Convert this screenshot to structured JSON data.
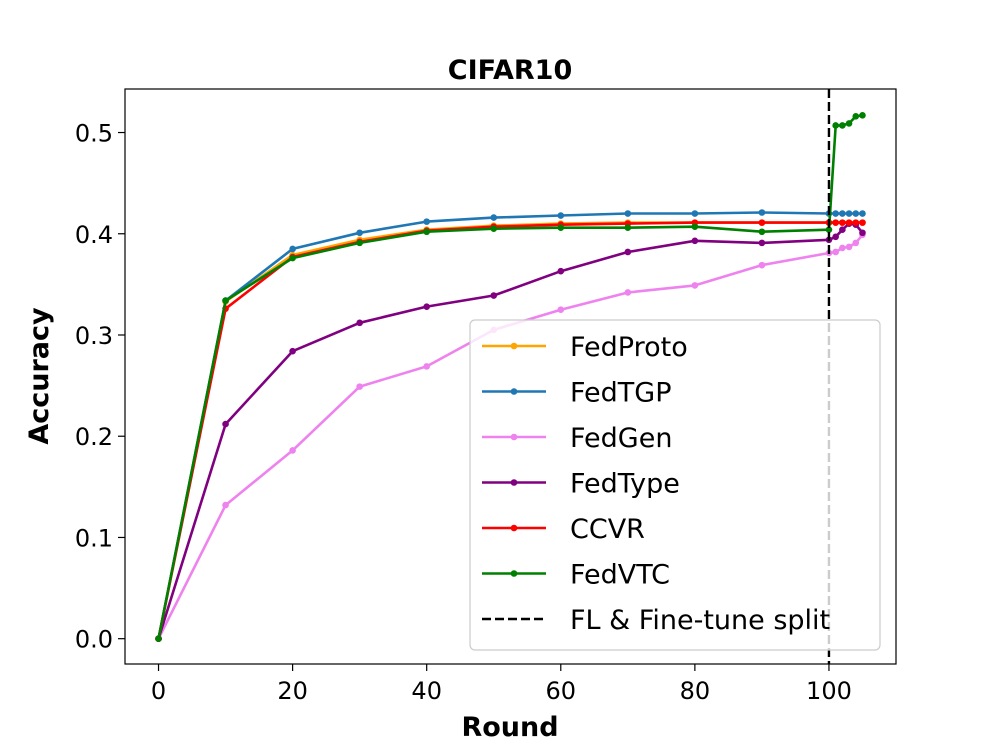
{
  "chart_data": {
    "type": "line",
    "title": "CIFAR10",
    "xlabel": "Round",
    "ylabel": "Accuracy",
    "xlim": [
      -5,
      110
    ],
    "ylim": [
      -0.025,
      0.543
    ],
    "xticks": [
      0,
      20,
      40,
      60,
      80,
      100
    ],
    "yticks": [
      0.0,
      0.1,
      0.2,
      0.3,
      0.4,
      0.5
    ],
    "xtick_labels": [
      "0",
      "20",
      "40",
      "60",
      "80",
      "100"
    ],
    "ytick_labels": [
      "0.0",
      "0.1",
      "0.2",
      "0.3",
      "0.4",
      "0.5"
    ],
    "legend_position": "lower-right",
    "vline": {
      "x": 100,
      "label": "FL & Fine-tune split",
      "color": "#000000",
      "style": "dashed"
    },
    "series": [
      {
        "name": "FedProto",
        "color": "#ffa500",
        "x": [
          0,
          10,
          20,
          30,
          40,
          50,
          60,
          70,
          80,
          90,
          100,
          101,
          102,
          103,
          104,
          105
        ],
        "values": [
          0.0,
          0.333,
          0.379,
          0.394,
          0.404,
          0.408,
          0.41,
          0.411,
          0.411,
          0.411,
          0.411,
          0.411,
          0.411,
          0.411,
          0.411,
          0.411
        ]
      },
      {
        "name": "FedTGP",
        "color": "#1f77b4",
        "x": [
          0,
          10,
          20,
          30,
          40,
          50,
          60,
          70,
          80,
          90,
          100,
          101,
          102,
          103,
          104,
          105
        ],
        "values": [
          0.0,
          0.334,
          0.385,
          0.401,
          0.412,
          0.416,
          0.418,
          0.42,
          0.42,
          0.421,
          0.42,
          0.42,
          0.42,
          0.42,
          0.42,
          0.42
        ]
      },
      {
        "name": "FedGen",
        "color": "#ee82ee",
        "x": [
          0,
          10,
          20,
          30,
          40,
          50,
          60,
          70,
          80,
          90,
          100,
          101,
          102,
          103,
          104,
          105
        ],
        "values": [
          0.0,
          0.132,
          0.186,
          0.249,
          0.269,
          0.305,
          0.325,
          0.342,
          0.349,
          0.369,
          0.381,
          0.382,
          0.386,
          0.387,
          0.391,
          0.399
        ]
      },
      {
        "name": "FedType",
        "color": "#800080",
        "x": [
          0,
          10,
          20,
          30,
          40,
          50,
          60,
          70,
          80,
          90,
          100,
          101,
          102,
          103,
          104,
          105
        ],
        "values": [
          0.0,
          0.212,
          0.284,
          0.312,
          0.328,
          0.339,
          0.363,
          0.382,
          0.393,
          0.391,
          0.394,
          0.397,
          0.404,
          0.41,
          0.409,
          0.401
        ]
      },
      {
        "name": "CCVR",
        "color": "#ff0000",
        "x": [
          0,
          10,
          20,
          30,
          40,
          50,
          60,
          70,
          80,
          90,
          100,
          101,
          102,
          103,
          104,
          105
        ],
        "values": [
          0.0,
          0.326,
          0.377,
          0.392,
          0.403,
          0.407,
          0.409,
          0.41,
          0.411,
          0.411,
          0.411,
          0.411,
          0.411,
          0.411,
          0.411,
          0.411
        ]
      },
      {
        "name": "FedVTC",
        "color": "#008000",
        "x": [
          0,
          10,
          20,
          30,
          40,
          50,
          60,
          70,
          80,
          90,
          100,
          101,
          102,
          103,
          104,
          105
        ],
        "values": [
          0.0,
          0.334,
          0.376,
          0.391,
          0.402,
          0.405,
          0.406,
          0.406,
          0.407,
          0.402,
          0.404,
          0.507,
          0.507,
          0.509,
          0.516,
          0.517
        ]
      }
    ]
  }
}
